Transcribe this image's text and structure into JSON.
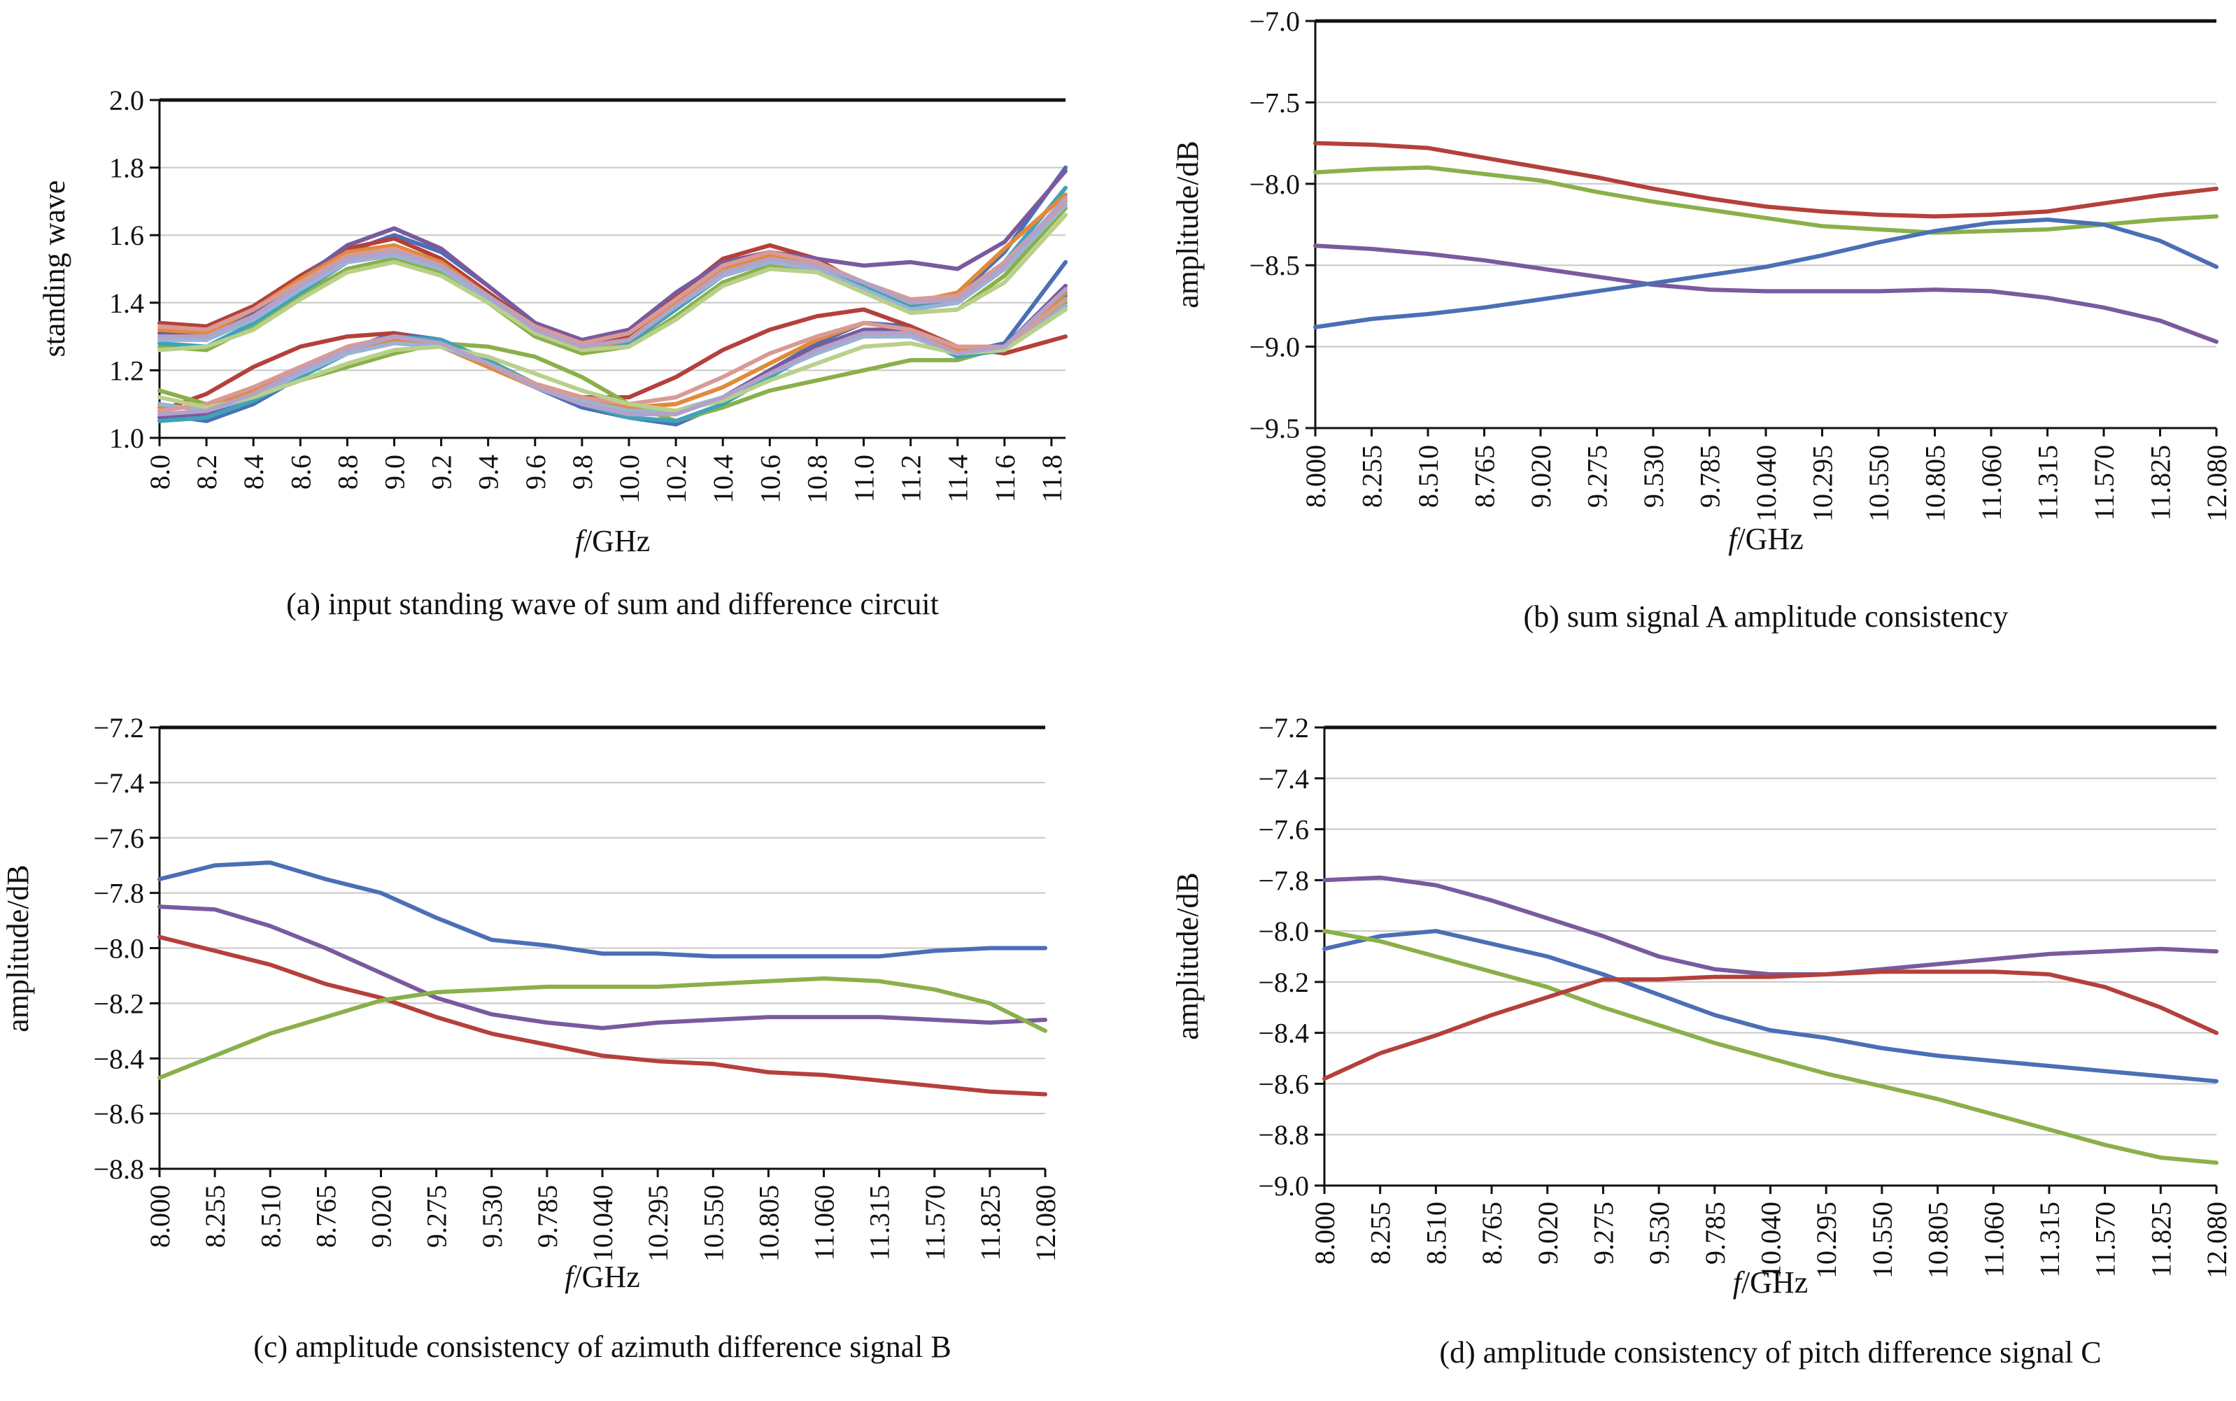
{
  "chart_data": [
    {
      "id": "a",
      "type": "line",
      "caption": "(a) input standing wave of sum and difference circuit",
      "xlabel_italic": "f",
      "xlabel_rest": "/GHz",
      "ylabel": "standing wave",
      "xlim": [
        8.0,
        11.86
      ],
      "ylim": [
        1.0,
        2.0
      ],
      "xticks": [
        "8.0",
        "8.2",
        "8.4",
        "8.6",
        "8.8",
        "9.0",
        "9.2",
        "9.4",
        "9.6",
        "9.8",
        "10.0",
        "10.2",
        "10.4",
        "10.6",
        "10.8",
        "11.0",
        "11.2",
        "11.4",
        "11.6",
        "11.8"
      ],
      "yticks": [
        "1.0",
        "1.2",
        "1.4",
        "1.6",
        "1.8",
        "2.0"
      ],
      "grid": true,
      "x": [
        8.0,
        8.2,
        8.4,
        8.6,
        8.8,
        9.0,
        9.2,
        9.4,
        9.6,
        9.8,
        10.0,
        10.2,
        10.4,
        10.6,
        10.8,
        11.0,
        11.2,
        11.4,
        11.6,
        11.86
      ],
      "series": [
        {
          "color": "#4a6fb5",
          "values": [
            1.3,
            1.29,
            1.36,
            1.45,
            1.55,
            1.6,
            1.55,
            1.45,
            1.34,
            1.28,
            1.3,
            1.4,
            1.5,
            1.54,
            1.52,
            1.46,
            1.4,
            1.42,
            1.55,
            1.8
          ]
        },
        {
          "color": "#b5403b",
          "values": [
            1.34,
            1.33,
            1.39,
            1.48,
            1.56,
            1.59,
            1.53,
            1.43,
            1.33,
            1.27,
            1.3,
            1.42,
            1.53,
            1.57,
            1.53,
            1.45,
            1.38,
            1.4,
            1.5,
            1.7
          ]
        },
        {
          "color": "#8ab04a",
          "values": [
            1.27,
            1.26,
            1.33,
            1.42,
            1.5,
            1.53,
            1.49,
            1.4,
            1.3,
            1.25,
            1.27,
            1.36,
            1.46,
            1.51,
            1.5,
            1.44,
            1.37,
            1.38,
            1.48,
            1.68
          ]
        },
        {
          "color": "#7a5a9e",
          "values": [
            1.31,
            1.31,
            1.37,
            1.47,
            1.57,
            1.62,
            1.56,
            1.45,
            1.34,
            1.29,
            1.32,
            1.43,
            1.52,
            1.55,
            1.53,
            1.51,
            1.52,
            1.5,
            1.58,
            1.79
          ]
        },
        {
          "color": "#3fa3b8",
          "values": [
            1.28,
            1.27,
            1.34,
            1.43,
            1.52,
            1.55,
            1.5,
            1.41,
            1.31,
            1.26,
            1.28,
            1.38,
            1.48,
            1.52,
            1.51,
            1.45,
            1.39,
            1.41,
            1.52,
            1.74
          ]
        },
        {
          "color": "#e08a3a",
          "values": [
            1.32,
            1.31,
            1.38,
            1.47,
            1.55,
            1.57,
            1.52,
            1.42,
            1.32,
            1.26,
            1.29,
            1.4,
            1.5,
            1.54,
            1.52,
            1.46,
            1.4,
            1.43,
            1.56,
            1.72
          ]
        },
        {
          "color": "#9ab3d6",
          "values": [
            1.29,
            1.29,
            1.35,
            1.44,
            1.52,
            1.54,
            1.5,
            1.41,
            1.31,
            1.27,
            1.29,
            1.39,
            1.48,
            1.52,
            1.5,
            1.44,
            1.38,
            1.4,
            1.5,
            1.69
          ]
        },
        {
          "color": "#d99a96",
          "values": [
            1.33,
            1.32,
            1.38,
            1.46,
            1.54,
            1.56,
            1.51,
            1.42,
            1.33,
            1.28,
            1.31,
            1.41,
            1.51,
            1.55,
            1.52,
            1.46,
            1.41,
            1.42,
            1.52,
            1.7
          ]
        },
        {
          "color": "#b9d08a",
          "values": [
            1.26,
            1.27,
            1.32,
            1.41,
            1.49,
            1.52,
            1.48,
            1.4,
            1.31,
            1.26,
            1.27,
            1.35,
            1.45,
            1.5,
            1.49,
            1.43,
            1.37,
            1.38,
            1.46,
            1.66
          ]
        },
        {
          "color": "#b3a2c8",
          "values": [
            1.3,
            1.3,
            1.36,
            1.45,
            1.53,
            1.55,
            1.51,
            1.42,
            1.32,
            1.27,
            1.29,
            1.39,
            1.49,
            1.53,
            1.51,
            1.46,
            1.4,
            1.41,
            1.51,
            1.71
          ]
        },
        {
          "color": "#4a6fb5",
          "values": [
            1.07,
            1.05,
            1.1,
            1.18,
            1.26,
            1.31,
            1.29,
            1.23,
            1.15,
            1.09,
            1.06,
            1.04,
            1.1,
            1.2,
            1.28,
            1.34,
            1.33,
            1.25,
            1.28,
            1.52
          ]
        },
        {
          "color": "#b5403b",
          "values": [
            1.08,
            1.13,
            1.21,
            1.27,
            1.3,
            1.31,
            1.28,
            1.22,
            1.16,
            1.12,
            1.12,
            1.18,
            1.26,
            1.32,
            1.36,
            1.38,
            1.33,
            1.27,
            1.25,
            1.3
          ]
        },
        {
          "color": "#8ab04a",
          "values": [
            1.14,
            1.1,
            1.12,
            1.17,
            1.21,
            1.25,
            1.28,
            1.27,
            1.24,
            1.18,
            1.1,
            1.05,
            1.09,
            1.14,
            1.17,
            1.2,
            1.23,
            1.23,
            1.27,
            1.4
          ]
        },
        {
          "color": "#7a5a9e",
          "values": [
            1.06,
            1.07,
            1.12,
            1.19,
            1.26,
            1.3,
            1.28,
            1.22,
            1.15,
            1.1,
            1.08,
            1.07,
            1.12,
            1.2,
            1.27,
            1.32,
            1.32,
            1.26,
            1.27,
            1.45
          ]
        },
        {
          "color": "#3fa3b8",
          "values": [
            1.05,
            1.06,
            1.11,
            1.18,
            1.25,
            1.3,
            1.29,
            1.23,
            1.16,
            1.1,
            1.06,
            1.05,
            1.1,
            1.18,
            1.26,
            1.31,
            1.31,
            1.24,
            1.26,
            1.42
          ]
        },
        {
          "color": "#e08a3a",
          "values": [
            1.09,
            1.09,
            1.14,
            1.2,
            1.26,
            1.29,
            1.27,
            1.21,
            1.15,
            1.11,
            1.09,
            1.1,
            1.15,
            1.22,
            1.29,
            1.34,
            1.32,
            1.26,
            1.27,
            1.43
          ]
        },
        {
          "color": "#9ab3d6",
          "values": [
            1.1,
            1.08,
            1.12,
            1.19,
            1.25,
            1.28,
            1.27,
            1.22,
            1.16,
            1.11,
            1.08,
            1.08,
            1.12,
            1.19,
            1.25,
            1.3,
            1.3,
            1.25,
            1.26,
            1.39
          ]
        },
        {
          "color": "#d99a96",
          "values": [
            1.08,
            1.1,
            1.15,
            1.21,
            1.27,
            1.3,
            1.28,
            1.22,
            1.16,
            1.12,
            1.1,
            1.12,
            1.18,
            1.25,
            1.3,
            1.34,
            1.32,
            1.27,
            1.27,
            1.41
          ]
        },
        {
          "color": "#b9d08a",
          "values": [
            1.12,
            1.09,
            1.12,
            1.17,
            1.22,
            1.26,
            1.27,
            1.24,
            1.19,
            1.14,
            1.1,
            1.08,
            1.11,
            1.17,
            1.22,
            1.27,
            1.28,
            1.25,
            1.26,
            1.38
          ]
        },
        {
          "color": "#b3a2c8",
          "values": [
            1.07,
            1.08,
            1.13,
            1.2,
            1.26,
            1.3,
            1.28,
            1.22,
            1.15,
            1.1,
            1.07,
            1.07,
            1.12,
            1.19,
            1.26,
            1.31,
            1.31,
            1.25,
            1.27,
            1.44
          ]
        }
      ]
    },
    {
      "id": "b",
      "type": "line",
      "caption": "(b) sum signal A amplitude consistency",
      "xlabel_italic": "f",
      "xlabel_rest": "/GHz",
      "ylabel": "amplitude/dB",
      "xlim": [
        8.0,
        12.08
      ],
      "ylim": [
        -9.5,
        -7.0
      ],
      "xticks": [
        "8.000",
        "8.255",
        "8.510",
        "8.765",
        "9.020",
        "9.275",
        "9.530",
        "9.785",
        "10.040",
        "10.295",
        "10.550",
        "10.805",
        "11.060",
        "11.315",
        "11.570",
        "11.825",
        "12.080"
      ],
      "yticks": [
        "−9.5",
        "−9.0",
        "−8.5",
        "−8.0",
        "−7.5",
        "−7.0"
      ],
      "grid": true,
      "x": [
        8.0,
        8.255,
        8.51,
        8.765,
        9.02,
        9.275,
        9.53,
        9.785,
        10.04,
        10.295,
        10.55,
        10.805,
        11.06,
        11.315,
        11.57,
        11.825,
        12.08
      ],
      "series": [
        {
          "color": "#b5403b",
          "values": [
            -7.75,
            -7.76,
            -7.78,
            -7.84,
            -7.9,
            -7.96,
            -8.03,
            -8.09,
            -8.14,
            -8.17,
            -8.19,
            -8.2,
            -8.19,
            -8.17,
            -8.12,
            -8.07,
            -8.03
          ]
        },
        {
          "color": "#8ab04a",
          "values": [
            -7.93,
            -7.91,
            -7.9,
            -7.94,
            -7.98,
            -8.05,
            -8.11,
            -8.16,
            -8.21,
            -8.26,
            -8.28,
            -8.3,
            -8.29,
            -8.28,
            -8.25,
            -8.22,
            -8.2
          ]
        },
        {
          "color": "#7a5a9e",
          "values": [
            -8.38,
            -8.4,
            -8.43,
            -8.47,
            -8.52,
            -8.57,
            -8.62,
            -8.65,
            -8.66,
            -8.66,
            -8.66,
            -8.65,
            -8.66,
            -8.7,
            -8.76,
            -8.84,
            -8.97
          ]
        },
        {
          "color": "#4a6fb5",
          "values": [
            -8.88,
            -8.83,
            -8.8,
            -8.76,
            -8.71,
            -8.66,
            -8.61,
            -8.56,
            -8.51,
            -8.44,
            -8.36,
            -8.29,
            -8.24,
            -8.22,
            -8.25,
            -8.35,
            -8.51
          ]
        }
      ]
    },
    {
      "id": "c",
      "type": "line",
      "caption": "(c) amplitude consistency of azimuth difference signal B",
      "xlabel_italic": "f",
      "xlabel_rest": "/GHz",
      "ylabel": "amplitude/dB",
      "xlim": [
        8.0,
        12.08
      ],
      "ylim": [
        -8.8,
        -7.2
      ],
      "xticks": [
        "8.000",
        "8.255",
        "8.510",
        "8.765",
        "9.020",
        "9.275",
        "9.530",
        "9.785",
        "10.040",
        "10.295",
        "10.550",
        "10.805",
        "11.060",
        "11.315",
        "11.570",
        "11.825",
        "12.080"
      ],
      "yticks": [
        "−8.8",
        "−8.6",
        "−8.4",
        "−8.2",
        "−8.0",
        "−7.8",
        "−7.6",
        "−7.4",
        "−7.2"
      ],
      "grid": true,
      "x": [
        8.0,
        8.255,
        8.51,
        8.765,
        9.02,
        9.275,
        9.53,
        9.785,
        10.04,
        10.295,
        10.55,
        10.805,
        11.06,
        11.315,
        11.57,
        11.825,
        12.08
      ],
      "series": [
        {
          "color": "#4a6fb5",
          "values": [
            -7.75,
            -7.7,
            -7.69,
            -7.75,
            -7.8,
            -7.89,
            -7.97,
            -7.99,
            -8.02,
            -8.02,
            -8.03,
            -8.03,
            -8.03,
            -8.03,
            -8.01,
            -8.0,
            -8.0
          ]
        },
        {
          "color": "#7a5a9e",
          "values": [
            -7.85,
            -7.86,
            -7.92,
            -8.0,
            -8.09,
            -8.18,
            -8.24,
            -8.27,
            -8.29,
            -8.27,
            -8.26,
            -8.25,
            -8.25,
            -8.25,
            -8.26,
            -8.27,
            -8.26
          ]
        },
        {
          "color": "#b5403b",
          "values": [
            -7.96,
            -8.01,
            -8.06,
            -8.13,
            -8.18,
            -8.25,
            -8.31,
            -8.35,
            -8.39,
            -8.41,
            -8.42,
            -8.45,
            -8.46,
            -8.48,
            -8.5,
            -8.52,
            -8.53
          ]
        },
        {
          "color": "#8ab04a",
          "values": [
            -8.47,
            -8.39,
            -8.31,
            -8.25,
            -8.19,
            -8.16,
            -8.15,
            -8.14,
            -8.14,
            -8.14,
            -8.13,
            -8.12,
            -8.11,
            -8.12,
            -8.15,
            -8.2,
            -8.3
          ]
        }
      ]
    },
    {
      "id": "d",
      "type": "line",
      "caption": "(d) amplitude consistency of pitch difference signal C",
      "xlabel_italic": "f",
      "xlabel_rest": "/GHz",
      "ylabel": "amplitude/dB",
      "xlim": [
        8.0,
        12.08
      ],
      "ylim": [
        -9.0,
        -7.2
      ],
      "xticks": [
        "8.000",
        "8.255",
        "8.510",
        "8.765",
        "9.020",
        "9.275",
        "9.530",
        "9.785",
        "10.040",
        "10.295",
        "10.550",
        "10.805",
        "11.060",
        "11.315",
        "11.570",
        "11.825",
        "12.080"
      ],
      "yticks": [
        "−9.0",
        "−8.8",
        "−8.6",
        "−8.4",
        "−8.2",
        "−8.0",
        "−7.8",
        "−7.6",
        "−7.4",
        "−7.2"
      ],
      "grid": true,
      "x": [
        8.0,
        8.255,
        8.51,
        8.765,
        9.02,
        9.275,
        9.53,
        9.785,
        10.04,
        10.295,
        10.55,
        10.805,
        11.06,
        11.315,
        11.57,
        11.825,
        12.08
      ],
      "series": [
        {
          "color": "#7a5a9e",
          "values": [
            -7.8,
            -7.79,
            -7.82,
            -7.88,
            -7.95,
            -8.02,
            -8.1,
            -8.15,
            -8.17,
            -8.17,
            -8.15,
            -8.13,
            -8.11,
            -8.09,
            -8.08,
            -8.07,
            -8.08
          ]
        },
        {
          "color": "#4a6fb5",
          "values": [
            -8.07,
            -8.02,
            -8.0,
            -8.05,
            -8.1,
            -8.17,
            -8.25,
            -8.33,
            -8.39,
            -8.42,
            -8.46,
            -8.49,
            -8.51,
            -8.53,
            -8.55,
            -8.57,
            -8.59
          ]
        },
        {
          "color": "#8ab04a",
          "values": [
            -8.0,
            -8.04,
            -8.1,
            -8.16,
            -8.22,
            -8.3,
            -8.37,
            -8.44,
            -8.5,
            -8.56,
            -8.61,
            -8.66,
            -8.72,
            -8.78,
            -8.84,
            -8.89,
            -8.91
          ]
        },
        {
          "color": "#b5403b",
          "values": [
            -8.58,
            -8.48,
            -8.41,
            -8.33,
            -8.26,
            -8.19,
            -8.19,
            -8.18,
            -8.18,
            -8.17,
            -8.16,
            -8.16,
            -8.16,
            -8.17,
            -8.22,
            -8.3,
            -8.4
          ]
        }
      ]
    }
  ]
}
